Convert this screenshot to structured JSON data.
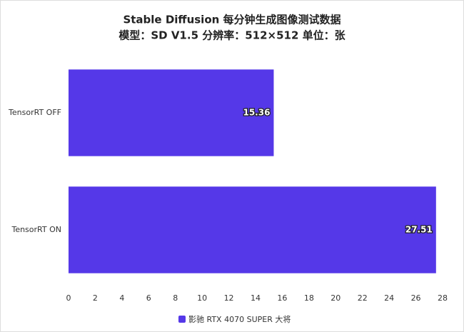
{
  "chart_data": {
    "type": "hbar",
    "title": "Stable Diffusion 每分钟生成图像测试数据",
    "subtitle": "模型：SD V1.5 分辨率：512×512 单位：张",
    "categories": [
      "TensorRT OFF",
      "TensorRT ON"
    ],
    "series": [
      {
        "name": "影驰 RTX 4070 SUPER 大将",
        "color": "#5538e8",
        "values": [
          15.36,
          27.51
        ]
      }
    ],
    "xlim": [
      0,
      28
    ],
    "xticks": [
      0,
      2,
      4,
      6,
      8,
      10,
      12,
      14,
      16,
      18,
      20,
      22,
      24,
      26,
      28
    ],
    "grid": false,
    "legend": "bottom"
  }
}
